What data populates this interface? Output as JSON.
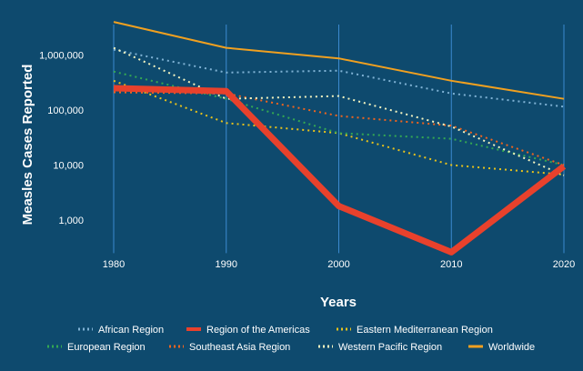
{
  "chart_data": {
    "type": "line",
    "xlabel": "Years",
    "ylabel": "Measles Cases Reported",
    "x": [
      1980,
      1990,
      2000,
      2010,
      2020
    ],
    "x_tick_labels": [
      "1980",
      "1990",
      "2000",
      "2010",
      "2020"
    ],
    "y_scale": "log",
    "ylim": [
      250,
      4000000
    ],
    "y_ticks": [
      1000,
      10000,
      100000,
      1000000
    ],
    "y_tick_labels": [
      "1,000",
      "10,000",
      "100,000",
      "1,000,000"
    ],
    "grid": "vertical",
    "legend_position": "bottom",
    "series": [
      {
        "name": "African Region",
        "values": [
          1250000,
          480000,
          520000,
          200000,
          115000
        ],
        "color": "#7fb2d4",
        "style": "dotted"
      },
      {
        "name": "Region of the Americas",
        "values": [
          250000,
          220000,
          1800,
          260,
          9500
        ],
        "color": "#e8412c",
        "style": "solid-thick"
      },
      {
        "name": "Eastern Mediterranean Region",
        "values": [
          340000,
          58000,
          38000,
          10000,
          6700
        ],
        "color": "#e8c21b",
        "style": "dotted"
      },
      {
        "name": "European Region",
        "values": [
          500000,
          160000,
          38000,
          30000,
          10000
        ],
        "color": "#34a853",
        "style": "dotted"
      },
      {
        "name": "Southeast Asia Region",
        "values": [
          210000,
          200000,
          78000,
          52000,
          10000
        ],
        "color": "#f0641e",
        "style": "dotted"
      },
      {
        "name": "Western Pacific Region",
        "values": [
          1350000,
          160000,
          180000,
          50000,
          6500
        ],
        "color": "#f4f4c0",
        "style": "dotted"
      },
      {
        "name": "Worldwide",
        "values": [
          4000000,
          1350000,
          870000,
          340000,
          160000
        ],
        "color": "#f0a020",
        "style": "solid"
      }
    ]
  }
}
